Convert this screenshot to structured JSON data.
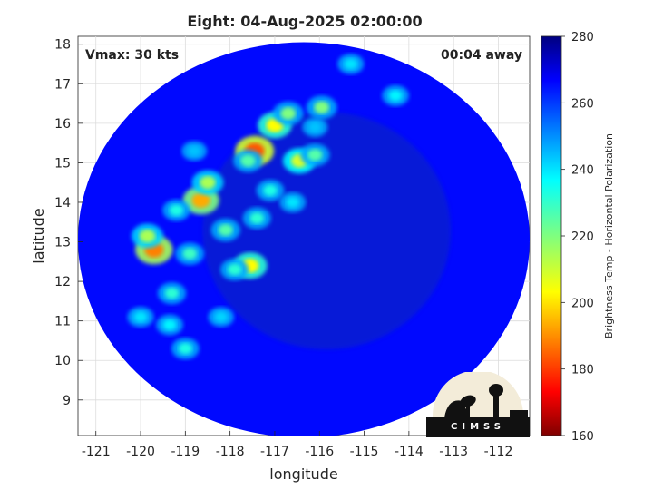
{
  "title": "Eight: 04-Aug-2025 02:00:00",
  "annotations": {
    "vmax": "Vmax: 30 kts",
    "time_away": "00:04 away"
  },
  "logo_text": "CIMSS",
  "chart_data": {
    "type": "heatmap",
    "title": "Eight: 04-Aug-2025 02:00:00",
    "xlabel": "longitude",
    "ylabel": "latitude",
    "xlim": [
      -121.4,
      -111.3
    ],
    "ylim": [
      8.1,
      18.2
    ],
    "x_ticks": [
      -121,
      -120,
      -119,
      -118,
      -117,
      -116,
      -115,
      -114,
      -113,
      -112
    ],
    "y_ticks": [
      9,
      10,
      11,
      12,
      13,
      14,
      15,
      16,
      17,
      18
    ],
    "grid": true,
    "colorbar": {
      "label": "Brightness Temp - Horizontal Polarization",
      "min": 160,
      "max": 280,
      "ticks": [
        160,
        180,
        200,
        220,
        240,
        260,
        280
      ],
      "colormap": "jet"
    },
    "background_value": 264,
    "swath": {
      "center_lon": -116.35,
      "center_lat": 13.05,
      "radius_lon": 5.05,
      "radius_lat": 5.0
    },
    "cold_cells": [
      {
        "lon": -119.7,
        "lat": 12.8,
        "value": 190
      },
      {
        "lon": -119.85,
        "lat": 13.15,
        "value": 215
      },
      {
        "lon": -118.65,
        "lat": 14.05,
        "value": 195
      },
      {
        "lon": -118.5,
        "lat": 14.5,
        "value": 215
      },
      {
        "lon": -117.45,
        "lat": 15.3,
        "value": 185
      },
      {
        "lon": -117.6,
        "lat": 15.05,
        "value": 225
      },
      {
        "lon": -117.0,
        "lat": 15.95,
        "value": 205
      },
      {
        "lon": -116.7,
        "lat": 16.25,
        "value": 220
      },
      {
        "lon": -115.95,
        "lat": 16.4,
        "value": 220
      },
      {
        "lon": -116.45,
        "lat": 15.05,
        "value": 210
      },
      {
        "lon": -116.1,
        "lat": 15.2,
        "value": 225
      },
      {
        "lon": -117.55,
        "lat": 12.4,
        "value": 205
      },
      {
        "lon": -117.9,
        "lat": 12.3,
        "value": 230
      },
      {
        "lon": -118.1,
        "lat": 13.3,
        "value": 225
      },
      {
        "lon": -117.4,
        "lat": 13.6,
        "value": 230
      },
      {
        "lon": -117.1,
        "lat": 14.3,
        "value": 232
      },
      {
        "lon": -119.2,
        "lat": 13.8,
        "value": 232
      },
      {
        "lon": -118.9,
        "lat": 12.7,
        "value": 228
      },
      {
        "lon": -119.3,
        "lat": 11.7,
        "value": 230
      },
      {
        "lon": -119.0,
        "lat": 10.3,
        "value": 232
      },
      {
        "lon": -119.35,
        "lat": 10.9,
        "value": 236
      },
      {
        "lon": -118.2,
        "lat": 11.1,
        "value": 240
      },
      {
        "lon": -116.6,
        "lat": 14.0,
        "value": 238
      },
      {
        "lon": -114.3,
        "lat": 16.7,
        "value": 236
      },
      {
        "lon": -115.3,
        "lat": 17.5,
        "value": 238
      },
      {
        "lon": -118.8,
        "lat": 15.3,
        "value": 242
      },
      {
        "lon": -120.0,
        "lat": 11.1,
        "value": 238
      },
      {
        "lon": -116.1,
        "lat": 15.9,
        "value": 242
      }
    ]
  }
}
